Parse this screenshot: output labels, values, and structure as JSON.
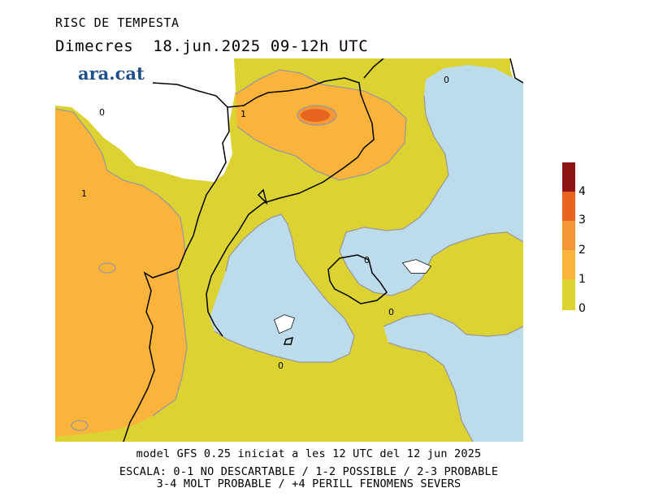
{
  "header": {
    "title": "RISC DE TEMPESTA",
    "day": "Dimecres",
    "date": "18.jun.2025",
    "time_range": "09-12h UTC"
  },
  "logo": {
    "text": "ara.cat"
  },
  "map": {
    "contour_labels": [
      "0",
      "1",
      "1",
      "0",
      "0",
      "0",
      "0"
    ],
    "colors": {
      "sea_low": "#bcdcec",
      "level_0_1": "#dcd232",
      "level_1_2": "#fab43c",
      "level_2_3": "#f59637",
      "level_3_4": "#e6641e",
      "level_4": "#8c1414"
    }
  },
  "legend": {
    "ticks": [
      "4",
      "3",
      "2",
      "1",
      "0"
    ],
    "colors": [
      "#8c1414",
      "#e6641e",
      "#f59637",
      "#fab43c",
      "#dcd232"
    ]
  },
  "footer": {
    "model_line": "model GFS 0.25 iniciat a les 12 UTC del 12 jun 2025",
    "scale_line1": "ESCALA: 0-1 NO DESCARTABLE / 1-2 POSSIBLE / 2-3 PROBABLE",
    "scale_line2": "3-4 MOLT PROBABLE / +4 PERILL FENOMENS SEVERS"
  }
}
